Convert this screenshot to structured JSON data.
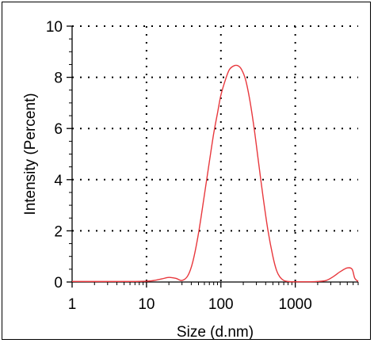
{
  "chart_data": {
    "type": "line",
    "title": "",
    "xlabel": "Size (d.nm)",
    "ylabel": "Intensity (Percent)",
    "x_scale": "log",
    "xlim": [
      1,
      7000
    ],
    "ylim": [
      0,
      10
    ],
    "x_ticks": [
      1,
      10,
      100,
      1000
    ],
    "x_tick_labels": [
      "1",
      "10",
      "100",
      "1000"
    ],
    "y_ticks": [
      0,
      2,
      4,
      6,
      8,
      10
    ],
    "y_tick_labels": [
      "0",
      "2",
      "4",
      "6",
      "8",
      "10"
    ],
    "grid": true,
    "grid_style": "dotted",
    "colors": {
      "series": "#e8383d",
      "axis": "#000000",
      "grid": "#000000"
    },
    "series": [
      {
        "x": [
          1,
          5,
          9.5,
          12,
          16,
          20,
          25,
          30,
          36,
          42,
          50,
          60,
          70,
          80,
          90,
          100,
          115,
          130,
          150,
          170,
          190,
          215,
          245,
          280,
          320,
          370,
          430,
          500,
          560,
          620,
          700,
          800,
          900,
          1000,
          1500,
          2000,
          2600,
          3200,
          4000,
          5000,
          5800,
          6300,
          7000
        ],
        "y": [
          0.02,
          0.02,
          0.03,
          0.05,
          0.12,
          0.18,
          0.14,
          0.06,
          0.25,
          0.8,
          1.9,
          3.4,
          4.7,
          5.8,
          6.6,
          7.3,
          7.9,
          8.3,
          8.45,
          8.45,
          8.3,
          7.9,
          7.1,
          6.0,
          4.7,
          3.3,
          2.0,
          1.0,
          0.45,
          0.2,
          0.06,
          0.02,
          0.01,
          0.01,
          0.01,
          0.02,
          0.06,
          0.2,
          0.4,
          0.55,
          0.5,
          0.15,
          0.02
        ]
      }
    ]
  }
}
